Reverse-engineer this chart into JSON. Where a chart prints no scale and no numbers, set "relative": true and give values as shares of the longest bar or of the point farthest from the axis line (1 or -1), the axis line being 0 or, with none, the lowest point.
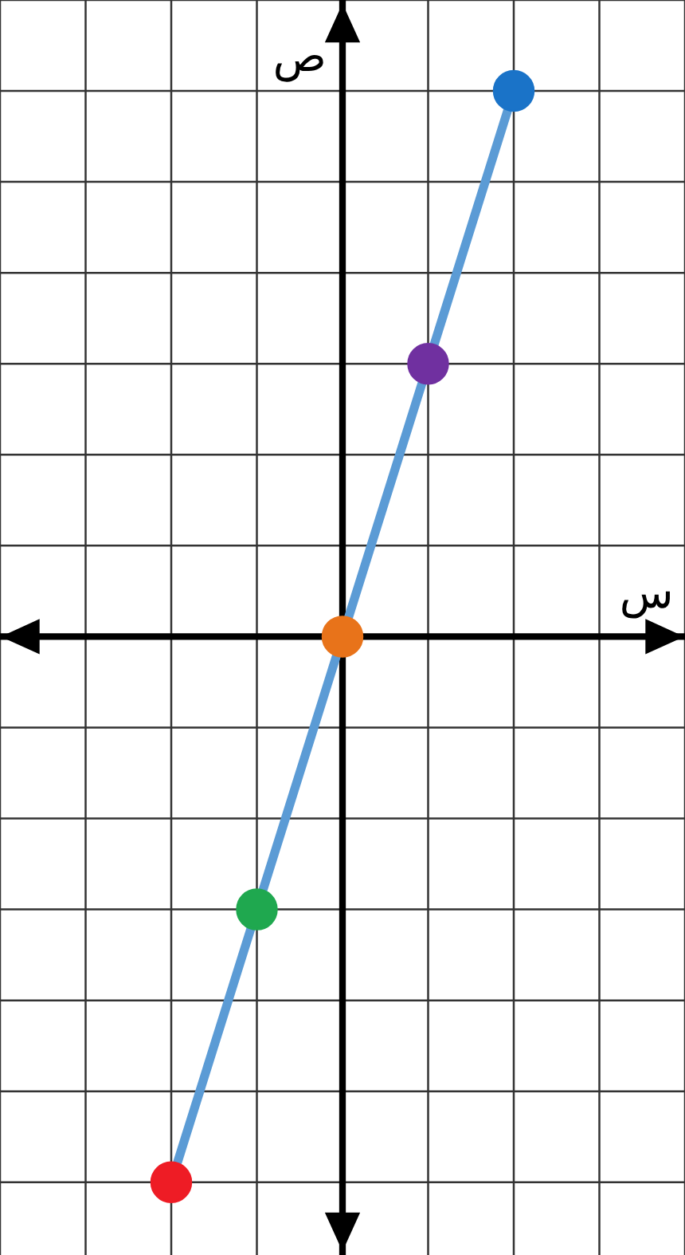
{
  "chart_data": {
    "type": "line",
    "relative": true,
    "grid": true,
    "xlabel": "س",
    "ylabel": "ص",
    "categories": [
      null,
      null,
      null,
      null,
      null
    ],
    "marker": "circle",
    "series": [
      {
        "color": "#5b9bd5",
        "colors": [
          "#ee1c25",
          "#1fa84f",
          "#e8731a",
          "#7030a0",
          "#1a73c8"
        ],
        "values": [
          -1,
          -0.5,
          0,
          0.5,
          1
        ]
      }
    ]
  }
}
